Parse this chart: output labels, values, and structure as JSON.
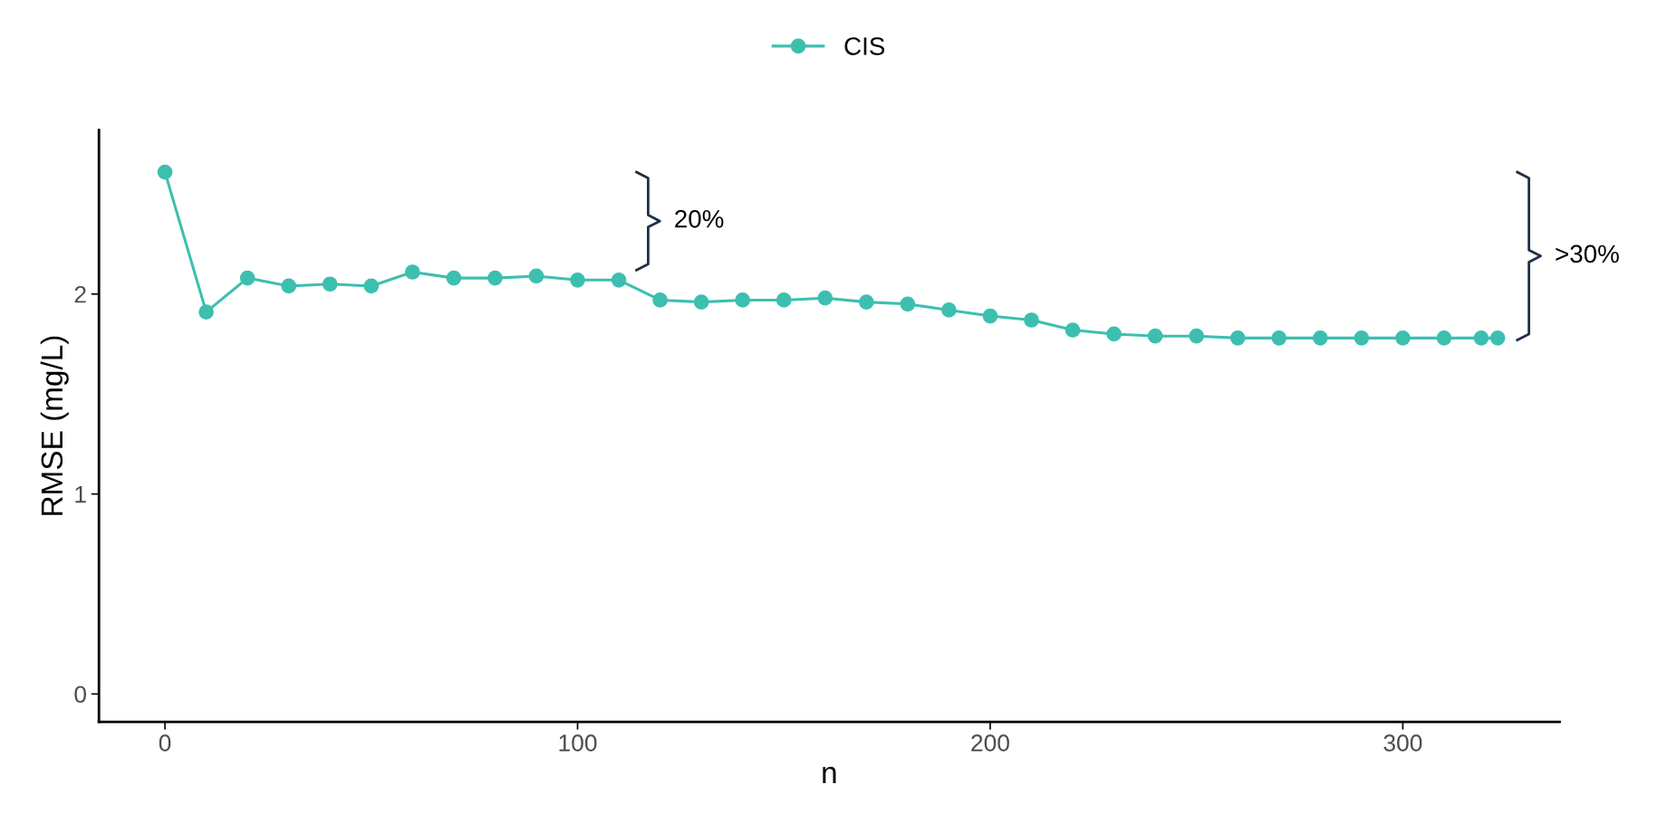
{
  "chart_data": {
    "type": "line",
    "xlabel": "n",
    "ylabel": "RMSE (mg/L)",
    "xlim": [
      -16,
      338
    ],
    "ylim": [
      -0.14,
      2.82
    ],
    "xticks": [
      0,
      100,
      200,
      300
    ],
    "yticks": [
      0,
      1,
      2
    ],
    "series": [
      {
        "name": "CIS",
        "color": "#3dbfb0",
        "x": [
          0,
          10,
          20,
          30,
          40,
          50,
          60,
          70,
          80,
          90,
          100,
          110,
          120,
          130,
          140,
          150,
          160,
          170,
          180,
          190,
          200,
          210,
          220,
          230,
          240,
          250,
          260,
          270,
          280,
          290,
          300,
          310,
          319,
          323
        ],
        "values": [
          2.61,
          1.91,
          2.08,
          2.04,
          2.05,
          2.04,
          2.11,
          2.08,
          2.08,
          2.09,
          2.07,
          2.07,
          1.97,
          1.96,
          1.97,
          1.97,
          1.98,
          1.96,
          1.95,
          1.92,
          1.89,
          1.87,
          1.82,
          1.8,
          1.79,
          1.79,
          1.78,
          1.78,
          1.78,
          1.78,
          1.78,
          1.78,
          1.78,
          1.78
        ]
      }
    ],
    "marker": "circle",
    "line_style": "solid",
    "grid": false,
    "legend": "top",
    "annotations": [
      "20%",
      ">30%"
    ]
  }
}
